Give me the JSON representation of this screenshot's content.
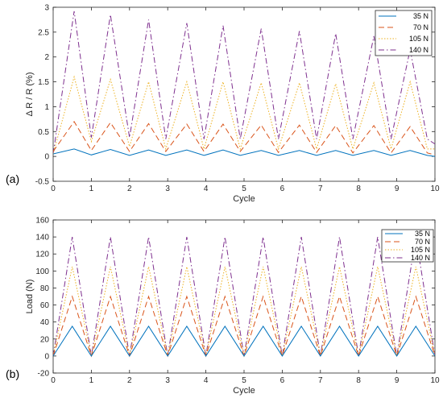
{
  "chart_data": [
    {
      "type": "line",
      "panel_label": "(a)",
      "xlabel": "Cycle",
      "ylabel": "Δ R / R (%)",
      "xlim": [
        0,
        10
      ],
      "ylim": [
        -0.5,
        3
      ],
      "xticks": [
        0,
        1,
        2,
        3,
        4,
        5,
        6,
        7,
        8,
        9,
        10
      ],
      "yticks": [
        -0.5,
        0,
        0.5,
        1,
        1.5,
        2,
        2.5,
        3
      ],
      "legend_position": "top-right",
      "peak_x": [
        0.55,
        1.5,
        2.5,
        3.5,
        4.45,
        5.45,
        6.45,
        7.4,
        8.4,
        9.35
      ],
      "trough_x": [
        0,
        1.0,
        2.0,
        2.95,
        3.95,
        4.9,
        5.9,
        6.9,
        7.85,
        8.85,
        9.8
      ],
      "end_x": 10,
      "series": [
        {
          "name": "35 N",
          "color": "#0072BD",
          "dash": "solid",
          "peaks": [
            0.15,
            0.14,
            0.13,
            0.13,
            0.13,
            0.12,
            0.12,
            0.12,
            0.12,
            0.12
          ],
          "troughs": [
            0.05,
            0.03,
            0.02,
            0.02,
            0.02,
            0.02,
            0.02,
            0.02,
            0.02,
            0.02,
            0.02
          ],
          "end": 0.0
        },
        {
          "name": "70 N",
          "color": "#D95319",
          "dash": "long",
          "peaks": [
            0.7,
            0.68,
            0.66,
            0.65,
            0.65,
            0.63,
            0.63,
            0.62,
            0.62,
            0.6
          ],
          "troughs": [
            0.1,
            0.12,
            0.1,
            0.1,
            0.1,
            0.1,
            0.08,
            0.08,
            0.07,
            0.07,
            0.07
          ],
          "end": 0.03
        },
        {
          "name": "105 N",
          "color": "#EDB120",
          "dash": "dot",
          "peaks": [
            1.6,
            1.55,
            1.5,
            1.5,
            1.5,
            1.48,
            1.48,
            1.46,
            1.48,
            1.5
          ],
          "troughs": [
            0.05,
            0.3,
            0.2,
            0.15,
            0.15,
            0.15,
            0.15,
            0.15,
            0.15,
            0.15,
            0.15
          ],
          "end": 0.15
        },
        {
          "name": "140 N",
          "color": "#7E2F8E",
          "dash": "dashdot",
          "peaks": [
            2.92,
            2.85,
            2.75,
            2.68,
            2.63,
            2.57,
            2.52,
            2.47,
            2.42,
            2.15
          ],
          "troughs": [
            0.05,
            0.38,
            0.38,
            0.35,
            0.35,
            0.35,
            0.35,
            0.35,
            0.35,
            0.35,
            0.35
          ],
          "end": 0.25
        }
      ]
    },
    {
      "type": "line",
      "panel_label": "(b)",
      "xlabel": "Cycle",
      "ylabel": "Load (N)",
      "xlim": [
        0,
        10
      ],
      "ylim": [
        -20,
        160
      ],
      "xticks": [
        0,
        1,
        2,
        3,
        4,
        5,
        6,
        7,
        8,
        9,
        10
      ],
      "yticks": [
        -20,
        0,
        20,
        40,
        60,
        80,
        100,
        120,
        140,
        160
      ],
      "legend_position": "top-right",
      "peak_x": [
        0.5,
        1.5,
        2.5,
        3.5,
        4.5,
        5.5,
        6.5,
        7.5,
        8.5,
        9.5
      ],
      "trough_x": [
        0,
        1,
        2,
        3,
        4,
        5,
        6,
        7,
        8,
        9,
        10
      ],
      "series": [
        {
          "name": "35 N",
          "color": "#0072BD",
          "dash": "solid",
          "peaks": [
            35,
            35,
            35,
            35,
            35,
            35,
            35,
            35,
            35,
            35
          ],
          "troughs": [
            0,
            0,
            0,
            0,
            0,
            0,
            0,
            0,
            0,
            0,
            0
          ]
        },
        {
          "name": "70 N",
          "color": "#D95319",
          "dash": "long",
          "peaks": [
            70,
            70,
            70,
            70,
            70,
            70,
            70,
            70,
            70,
            70
          ],
          "troughs": [
            0,
            0,
            0,
            0,
            0,
            0,
            0,
            0,
            0,
            0,
            0
          ]
        },
        {
          "name": "105 N",
          "color": "#EDB120",
          "dash": "dot",
          "peaks": [
            105,
            105,
            105,
            105,
            105,
            105,
            105,
            105,
            105,
            105
          ],
          "troughs": [
            0,
            0,
            0,
            0,
            0,
            0,
            0,
            0,
            0,
            0,
            0
          ]
        },
        {
          "name": "140 N",
          "color": "#7E2F8E",
          "dash": "dashdot",
          "peaks": [
            140,
            140,
            140,
            140,
            140,
            140,
            140,
            140,
            140,
            140
          ],
          "troughs": [
            0,
            0,
            0,
            0,
            0,
            0,
            0,
            0,
            0,
            0,
            0
          ]
        }
      ]
    }
  ]
}
